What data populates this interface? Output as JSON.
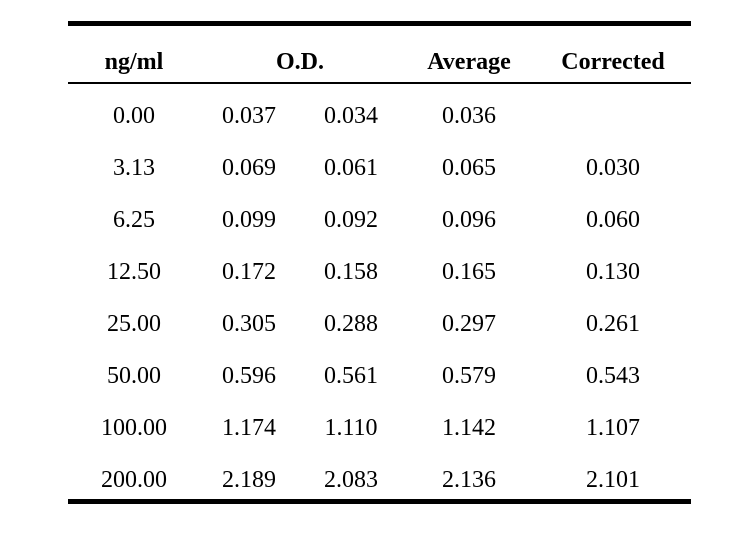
{
  "table": {
    "headers": {
      "ng_ml": "ng/ml",
      "od": "O.D.",
      "average": "Average",
      "corrected": "Corrected"
    },
    "rows": [
      {
        "ng_ml": "0.00",
        "od1": "0.037",
        "od2": "0.034",
        "average": "0.036",
        "corrected": ""
      },
      {
        "ng_ml": "3.13",
        "od1": "0.069",
        "od2": "0.061",
        "average": "0.065",
        "corrected": "0.030"
      },
      {
        "ng_ml": "6.25",
        "od1": "0.099",
        "od2": "0.092",
        "average": "0.096",
        "corrected": "0.060"
      },
      {
        "ng_ml": "12.50",
        "od1": "0.172",
        "od2": "0.158",
        "average": "0.165",
        "corrected": "0.130"
      },
      {
        "ng_ml": "25.00",
        "od1": "0.305",
        "od2": "0.288",
        "average": "0.297",
        "corrected": "0.261"
      },
      {
        "ng_ml": "50.00",
        "od1": "0.596",
        "od2": "0.561",
        "average": "0.579",
        "corrected": "0.543"
      },
      {
        "ng_ml": "100.00",
        "od1": "1.174",
        "od2": "1.110",
        "average": "1.142",
        "corrected": "1.107"
      },
      {
        "ng_ml": "200.00",
        "od1": "2.189",
        "od2": "2.083",
        "average": "2.136",
        "corrected": "2.101"
      }
    ]
  }
}
